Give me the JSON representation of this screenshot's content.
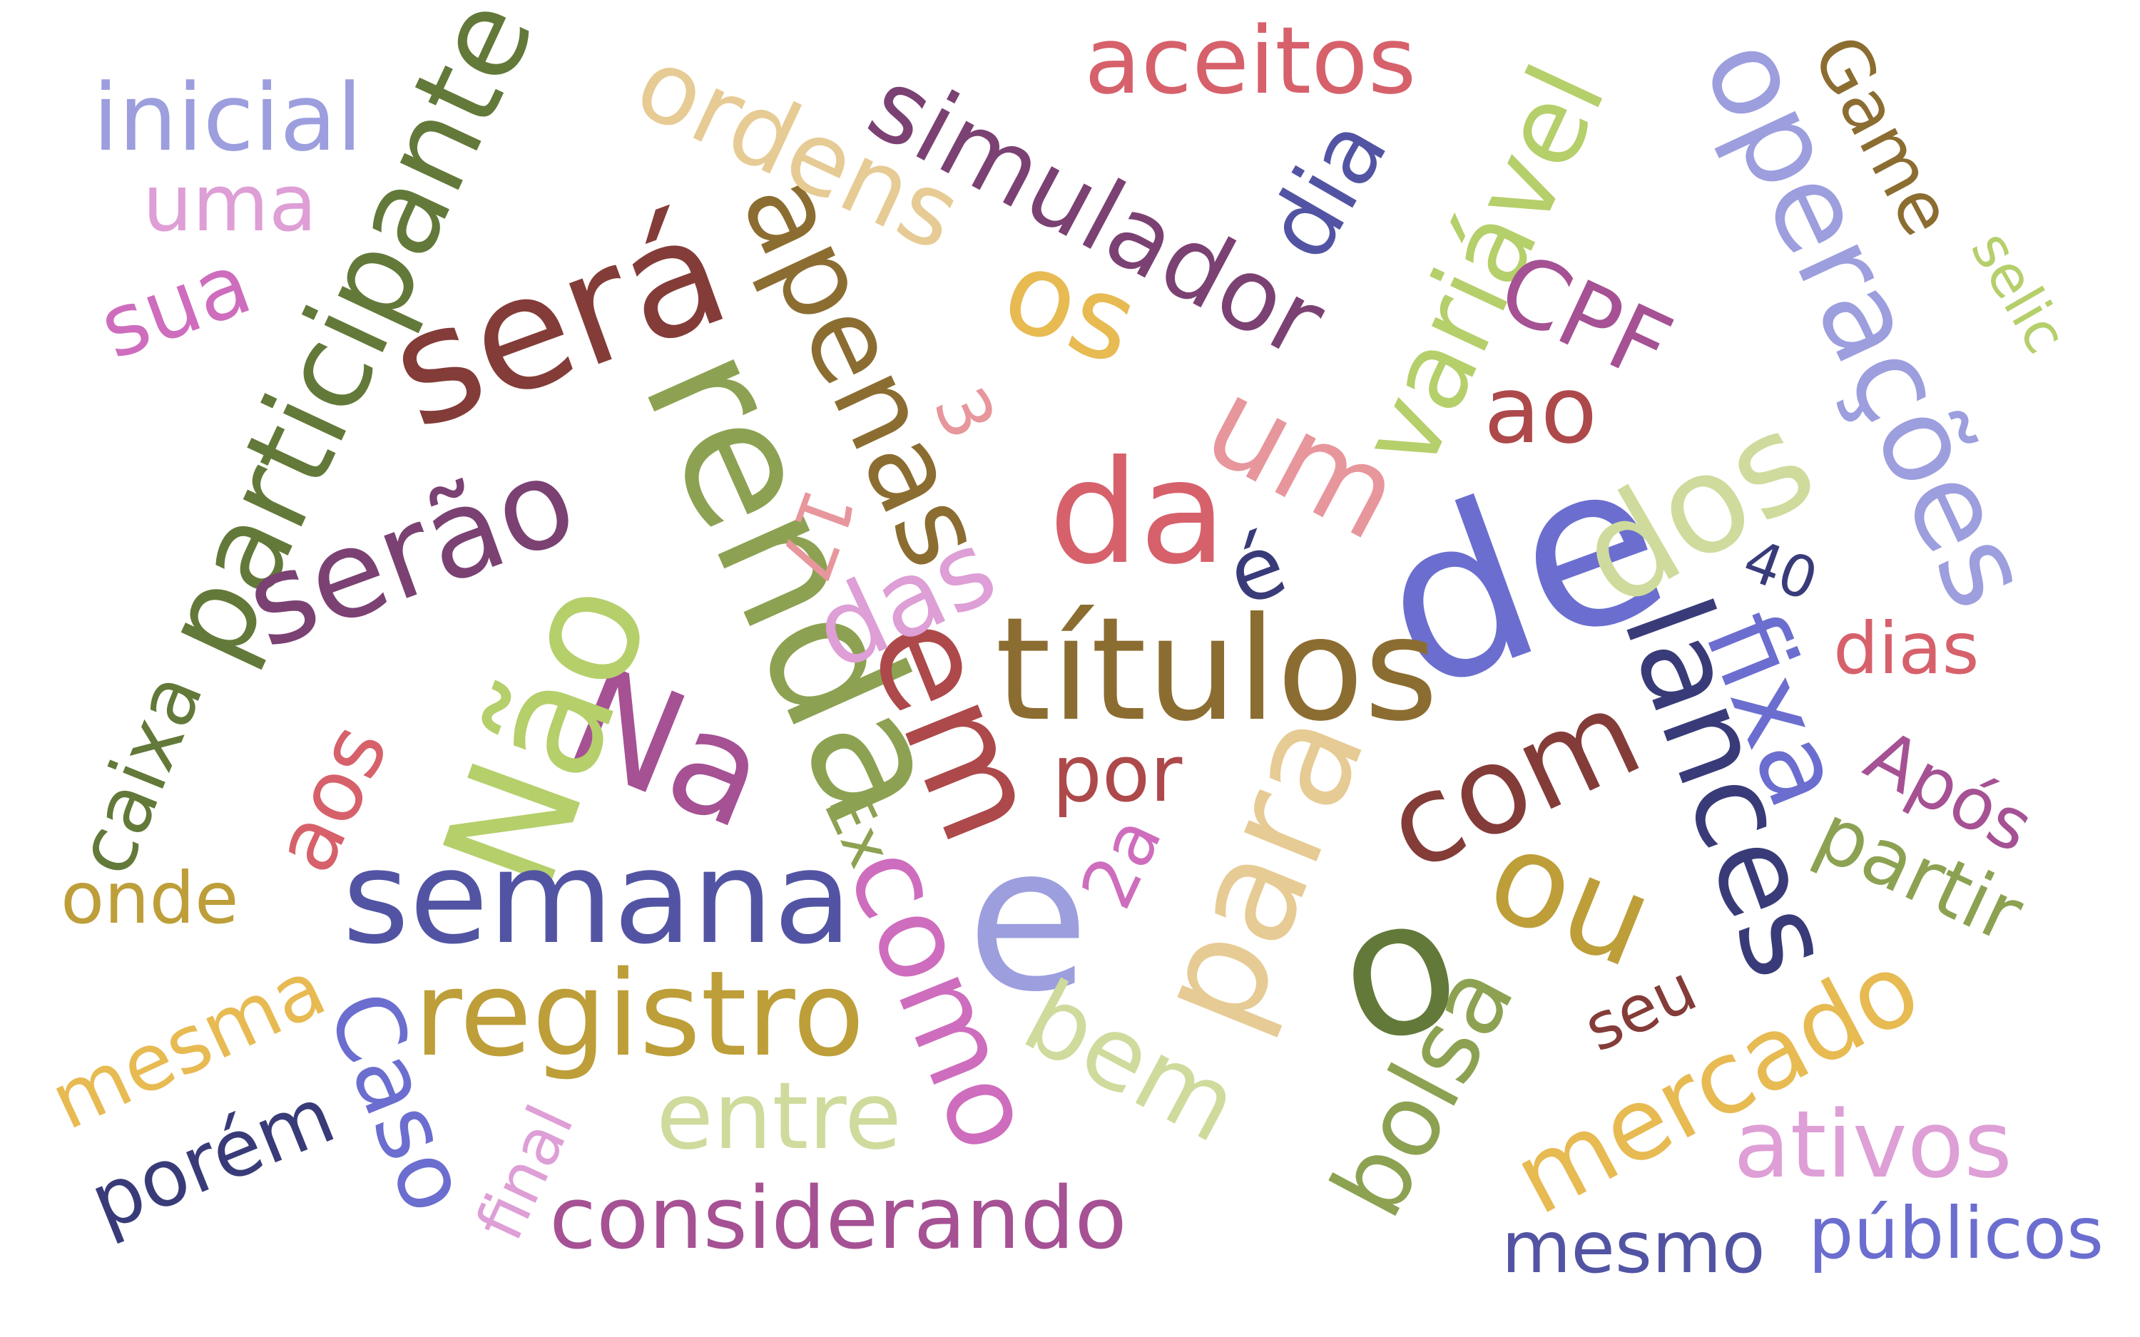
{
  "words": [
    {
      "text": "de",
      "color": "#6b6ecf"
    },
    {
      "text": "títulos",
      "color": "#8c6d31"
    },
    {
      "text": "renda",
      "color": "#8ca252"
    },
    {
      "text": "e",
      "color": "#9c9ede"
    },
    {
      "text": "o",
      "color": "#637939"
    },
    {
      "text": "será",
      "color": "#843c39"
    },
    {
      "text": "Na",
      "color": "#a55194"
    },
    {
      "text": "Não",
      "color": "#b5cf6b"
    },
    {
      "text": "semana",
      "color": "#5254a3"
    },
    {
      "text": "em",
      "color": "#ad494a"
    },
    {
      "text": "da",
      "color": "#d6616b"
    },
    {
      "text": "lances",
      "color": "#393b79"
    },
    {
      "text": "dos",
      "color": "#cedb9c"
    },
    {
      "text": "com",
      "color": "#843c39"
    },
    {
      "text": "registro",
      "color": "#bd9e39"
    },
    {
      "text": "para",
      "color": "#e7cb94"
    },
    {
      "text": "participante",
      "color": "#637939"
    },
    {
      "text": "serão",
      "color": "#7b4173"
    },
    {
      "text": "como",
      "color": "#ce6dbd"
    },
    {
      "text": "ou",
      "color": "#bd9e39"
    },
    {
      "text": "operações",
      "color": "#9c9ede"
    },
    {
      "text": "apenas",
      "color": "#8c6d31"
    },
    {
      "text": "fixa",
      "color": "#6b6ecf"
    },
    {
      "text": "um",
      "color": "#e7969c"
    },
    {
      "text": "variável",
      "color": "#b5cf6b"
    },
    {
      "text": "simulador",
      "color": "#7b4173"
    },
    {
      "text": "os",
      "color": "#e7ba52"
    },
    {
      "text": "ordens",
      "color": "#e7cb94"
    },
    {
      "text": "das",
      "color": "#de9ed6"
    },
    {
      "text": "mercado",
      "color": "#e7ba52"
    },
    {
      "text": "bolsa",
      "color": "#8ca252"
    },
    {
      "text": "bem",
      "color": "#cedb9c"
    },
    {
      "text": "Caso",
      "color": "#6b6ecf"
    },
    {
      "text": "considerando",
      "color": "#a55194"
    },
    {
      "text": "aceitos",
      "color": "#d6616b"
    },
    {
      "text": "ativos",
      "color": "#de9ed6"
    },
    {
      "text": "entre",
      "color": "#cedb9c"
    },
    {
      "text": "ao",
      "color": "#ad494a"
    },
    {
      "text": "dia",
      "color": "#5254a3"
    },
    {
      "text": "CPF",
      "color": "#a55194"
    },
    {
      "text": "inicial",
      "color": "#9c9ede"
    },
    {
      "text": "sua",
      "color": "#ce6dbd"
    },
    {
      "text": "aos",
      "color": "#d6616b"
    },
    {
      "text": "caixa",
      "color": "#637939"
    },
    {
      "text": "partir",
      "color": "#8ca252"
    },
    {
      "text": "mesma",
      "color": "#e7ba52"
    },
    {
      "text": "porém",
      "color": "#393b79"
    },
    {
      "text": "onde",
      "color": "#bd9e39"
    },
    {
      "text": "dias",
      "color": "#d6616b"
    },
    {
      "text": "Game",
      "color": "#8c6d31"
    },
    {
      "text": "Após",
      "color": "#a55194"
    },
    {
      "text": "mesmo",
      "color": "#5254a3"
    },
    {
      "text": "públicos",
      "color": "#6b6ecf"
    },
    {
      "text": "por",
      "color": "#ad494a"
    },
    {
      "text": "uma",
      "color": "#de9ed6"
    },
    {
      "text": "seu",
      "color": "#843c39"
    },
    {
      "text": "é",
      "color": "#393b79"
    },
    {
      "text": "final",
      "color": "#de9ed6"
    },
    {
      "text": "selic",
      "color": "#b5cf6b"
    },
    {
      "text": "2a",
      "color": "#ce6dbd"
    },
    {
      "text": "3",
      "color": "#e7969c"
    },
    {
      "text": "17",
      "color": "#e7969c"
    },
    {
      "text": "40",
      "color": "#393b79"
    },
    {
      "text": "Ex",
      "color": "#8ca252"
    }
  ]
}
